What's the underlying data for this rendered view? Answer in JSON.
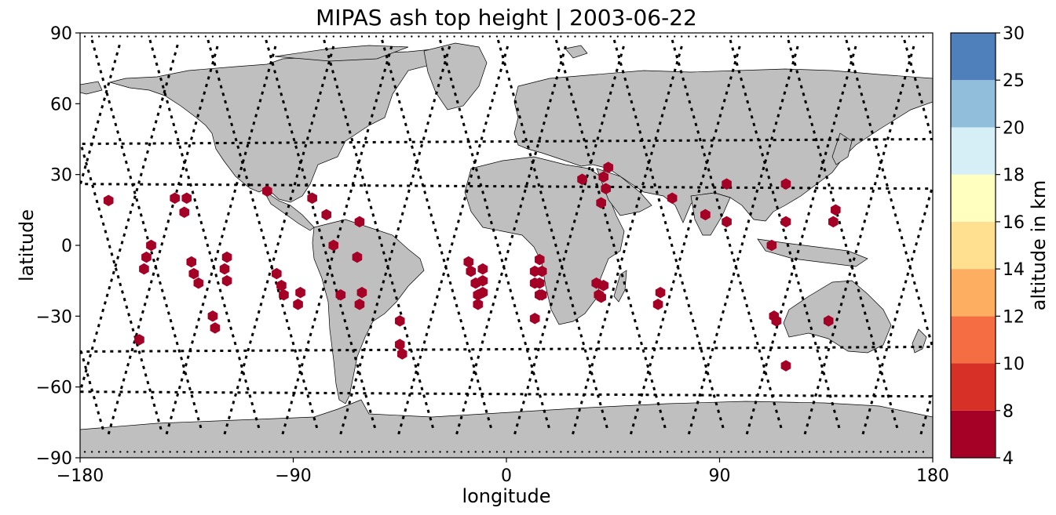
{
  "title": "MIPAS ash top height | 2003-06-22",
  "axes": {
    "xlabel": "longitude",
    "ylabel": "latitude",
    "xlim": [
      -180,
      180
    ],
    "ylim": [
      -90,
      90
    ],
    "xticks": [
      -180,
      -90,
      0,
      90,
      180
    ],
    "xtick_labels": [
      "−180",
      "−90",
      "0",
      "90",
      "180"
    ],
    "yticks": [
      -90,
      -60,
      -30,
      0,
      30,
      60,
      90
    ],
    "ytick_labels": [
      "−90",
      "−60",
      "−30",
      "0",
      "30",
      "60",
      "90"
    ]
  },
  "colorbar": {
    "label": "altitude in km",
    "levels": [
      4,
      8,
      10,
      12,
      14,
      16,
      18,
      20,
      25,
      30
    ],
    "colors": [
      "#a50026",
      "#d73027",
      "#f46d43",
      "#fdae61",
      "#fee090",
      "#ffffbf",
      "#d6eef5",
      "#91bfdb",
      "#4f80bb",
      "#313695"
    ]
  },
  "colors": {
    "land": "#bfbfbf",
    "coast": "#000000",
    "track": "#000000",
    "ash_marker": "#a50026"
  },
  "chart_data": {
    "type": "scatter",
    "marker": "hexagon",
    "series": [
      {
        "altitude_class": "4-8 km",
        "points": [
          [
            -168,
            19
          ],
          [
            -140,
            20
          ],
          [
            -135,
            20
          ],
          [
            -136,
            14
          ],
          [
            -150,
            0
          ],
          [
            -152,
            -5
          ],
          [
            -153,
            -10
          ],
          [
            -155,
            -40
          ],
          [
            -124,
            -30
          ],
          [
            -123,
            -35
          ],
          [
            -133,
            -7
          ],
          [
            -132,
            -12
          ],
          [
            -130,
            -16
          ],
          [
            -118,
            -5
          ],
          [
            -119,
            -10
          ],
          [
            -118,
            -15
          ],
          [
            -101,
            23
          ],
          [
            -97,
            -12
          ],
          [
            -95,
            -17
          ],
          [
            -94,
            -21
          ],
          [
            -87,
            -20
          ],
          [
            -88,
            -25
          ],
          [
            -82,
            20
          ],
          [
            -76,
            13
          ],
          [
            -73,
            0
          ],
          [
            -70,
            -21
          ],
          [
            -62,
            10
          ],
          [
            -63,
            -5
          ],
          [
            -61,
            -20
          ],
          [
            -62,
            -25
          ],
          [
            -45,
            -32
          ],
          [
            -45,
            -42
          ],
          [
            -44,
            -46
          ],
          [
            -16,
            -7
          ],
          [
            -15,
            -11
          ],
          [
            -13,
            -16
          ],
          [
            -12,
            -21
          ],
          [
            -12,
            -25
          ],
          [
            -10,
            -10
          ],
          [
            -10,
            -15
          ],
          [
            -10,
            -20
          ],
          [
            14,
            -6
          ],
          [
            15,
            -11
          ],
          [
            14,
            -16
          ],
          [
            15,
            -21
          ],
          [
            12,
            -16
          ],
          [
            14,
            -21
          ],
          [
            12,
            -11
          ],
          [
            12,
            -31
          ],
          [
            32,
            28
          ],
          [
            40,
            18
          ],
          [
            43,
            33
          ],
          [
            42,
            24
          ],
          [
            41,
            29
          ],
          [
            38,
            -16
          ],
          [
            39,
            -21
          ],
          [
            41,
            -17
          ],
          [
            40,
            -22
          ],
          [
            70,
            20
          ],
          [
            64,
            -25
          ],
          [
            65,
            -20
          ],
          [
            84,
            13
          ],
          [
            93,
            10
          ],
          [
            93,
            26
          ],
          [
            112,
            0
          ],
          [
            113,
            -30
          ],
          [
            114,
            -32
          ],
          [
            118,
            -51
          ],
          [
            118,
            10
          ],
          [
            118,
            26
          ],
          [
            136,
            -32
          ],
          [
            138,
            10
          ],
          [
            139,
            15
          ]
        ]
      }
    ],
    "tracks": "MIPAS measurement geolocations along descending and ascending orbit tracks"
  }
}
